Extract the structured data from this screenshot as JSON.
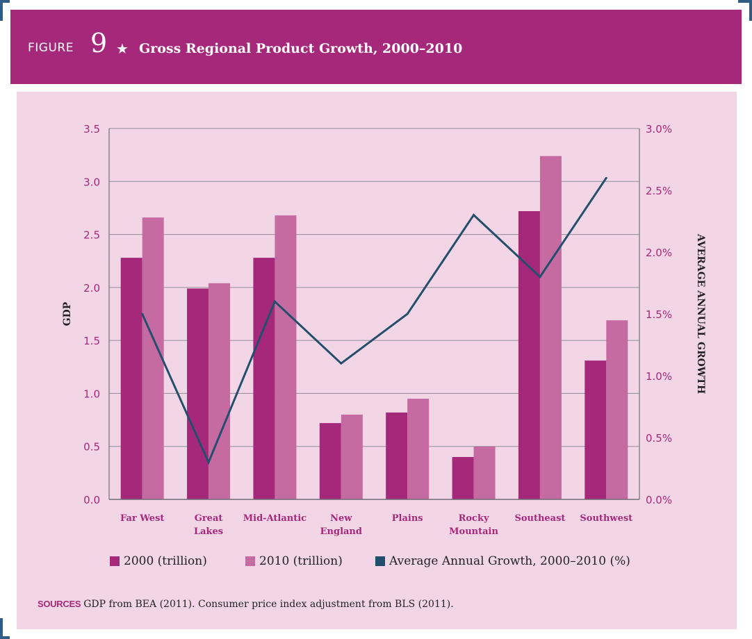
{
  "figure": {
    "label": "FIGURE",
    "number": "9",
    "star": "★",
    "title": "Gross Regional Product Growth, 2000–2010"
  },
  "colors": {
    "header": "#a6287a",
    "panel": "#f2d6e5",
    "bar_2000": "#a6287a",
    "bar_2010": "#c66aa2",
    "line": "#234e6d",
    "grid": "#8e8e96",
    "tick_text": "#a6287a",
    "category_text": "#a6287a"
  },
  "chart_data": {
    "type": "bar",
    "categories": [
      "Far West",
      "Great Lakes",
      "Mid-Atlantic",
      "New England",
      "Plains",
      "Rocky Mountain",
      "Southeast",
      "Southwest"
    ],
    "category_lines": [
      [
        "Far West"
      ],
      [
        "Great",
        "Lakes"
      ],
      [
        "Mid-Atlantic"
      ],
      [
        "New",
        "England"
      ],
      [
        "Plains"
      ],
      [
        "Rocky",
        "Mountain"
      ],
      [
        "Southeast"
      ],
      [
        "Southwest"
      ]
    ],
    "series": [
      {
        "name": "2000 (trillion)",
        "type": "bar",
        "axis": "left",
        "values": [
          2.28,
          1.99,
          2.28,
          0.72,
          0.82,
          0.4,
          2.72,
          1.31
        ]
      },
      {
        "name": "2010 (trillion)",
        "type": "bar",
        "axis": "left",
        "values": [
          2.66,
          2.04,
          2.68,
          0.8,
          0.95,
          0.5,
          3.24,
          1.69
        ]
      },
      {
        "name": "Average Annual Growth, 2000–2010 (%)",
        "type": "line",
        "axis": "right",
        "values": [
          1.5,
          0.3,
          1.6,
          1.1,
          1.5,
          2.3,
          1.8,
          2.6
        ]
      }
    ],
    "ylabel": "GDP",
    "y2label": "AVERAGE ANNUAL GROWTH",
    "ylim": [
      0,
      3.5
    ],
    "y2lim": [
      0,
      3.0
    ],
    "yticks": [
      "0.0",
      "0.5",
      "1.0",
      "1.5",
      "2.0",
      "2.5",
      "3.0",
      "3.5"
    ],
    "y2ticks": [
      "0.0%",
      "0.5%",
      "1.0%",
      "1.5%",
      "2.0%",
      "2.5%",
      "3.0%"
    ],
    "grid": true,
    "legend_position": "bottom"
  },
  "sources": {
    "label": "SOURCES",
    "text": "GDP from BEA (2011). Consumer price index adjustment from BLS (2011)."
  }
}
